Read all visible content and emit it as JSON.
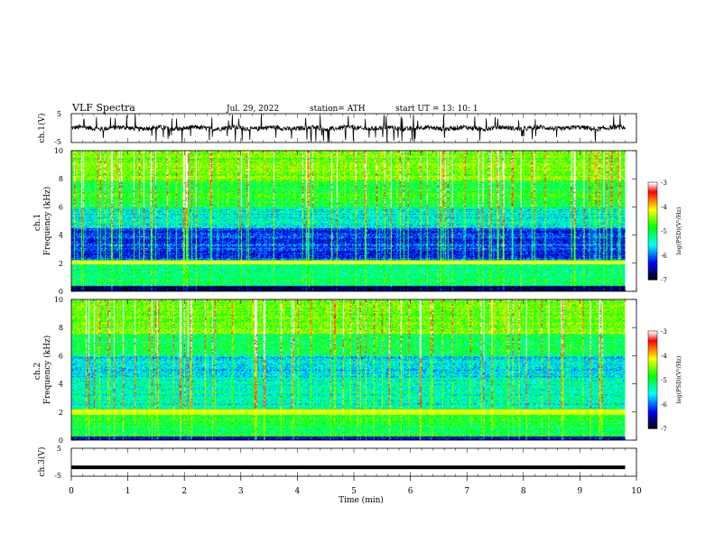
{
  "header": {
    "title": "VLF  Spectra",
    "date": "Jul.  29, 2022",
    "station": "station= ATH",
    "start": "start  UT  =    13: 10: 1"
  },
  "chart_data": [
    {
      "type": "line",
      "panel": "ch1-waveform",
      "ylabel": "ch.1(V)",
      "ylim": [
        -5,
        5
      ],
      "yticks": [
        "5",
        "-5"
      ],
      "baseline": 0,
      "description_values": "noisy waveform oscillating around 0 V with spikes reaching about ±5 V"
    },
    {
      "type": "heatmap",
      "panel": "ch1-spectrogram",
      "ylabel": "ch.1\nFrequency  (kHz)",
      "ylim": [
        0,
        10
      ],
      "yticks": [
        "0",
        "2",
        "4",
        "6",
        "8",
        "10"
      ],
      "colorbar": {
        "label": "log(PSD)(V²/Hz)",
        "ticks": [
          "-3",
          "-4",
          "-5",
          "-6",
          "-7"
        ],
        "range": [
          -7,
          -3
        ]
      }
    },
    {
      "type": "heatmap",
      "panel": "ch2-spectrogram",
      "ylabel": "ch.2\nFrequency  (kHz)",
      "ylim": [
        0,
        10
      ],
      "yticks": [
        "0",
        "2",
        "4",
        "6",
        "8",
        "10"
      ],
      "colorbar": {
        "label": "log(PSD)(V²/Hz)",
        "ticks": [
          "-3",
          "-4",
          "-5",
          "-6",
          "-7"
        ],
        "range": [
          -7,
          -3
        ]
      }
    },
    {
      "type": "line",
      "panel": "ch3-waveform",
      "ylabel": "ch.3(V)",
      "ylim": [
        -5,
        5
      ],
      "yticks": [
        "5",
        "-5"
      ],
      "level": -1.8
    }
  ],
  "xaxis": {
    "label": "Time  (min)",
    "xlim": [
      0,
      10
    ],
    "ticks": [
      "0",
      "1",
      "2",
      "3",
      "4",
      "5",
      "6",
      "7",
      "8",
      "9",
      "10"
    ],
    "data_end": 9.8
  },
  "colors": {
    "colormap": [
      "#000000",
      "#000080",
      "#0000ff",
      "#0080ff",
      "#00ffff",
      "#00ff80",
      "#00ff00",
      "#80ff00",
      "#ffff00",
      "#ff8000",
      "#ff0000",
      "#ffffff"
    ],
    "line": "#000000"
  }
}
